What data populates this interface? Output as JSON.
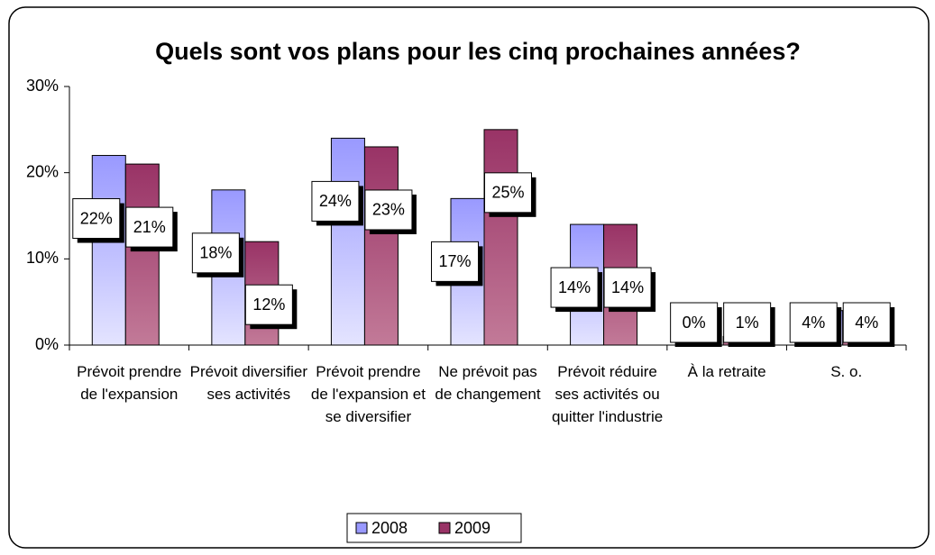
{
  "chart_data": {
    "type": "bar",
    "title": "Quels sont vos plans pour les cinq prochaines années?",
    "categories": [
      "Prévoit prendre de l'expansion",
      "Prévoit diversifier ses activités",
      "Prévoit prendre de l'expansion et se diversifier",
      "Ne prévoit pas de changement",
      "Prévoit réduire ses activités ou quitter l'industrie",
      "À la retraite",
      "S. o."
    ],
    "series": [
      {
        "name": "2008",
        "color": "#9999ff",
        "values": [
          22,
          18,
          24,
          17,
          14,
          0,
          4
        ],
        "value_labels": [
          "22%",
          "18%",
          "24%",
          "17%",
          "14%",
          "0%",
          "4%"
        ]
      },
      {
        "name": "2009",
        "color": "#993366",
        "values": [
          21,
          12,
          23,
          25,
          14,
          1,
          4
        ],
        "value_labels": [
          "21%",
          "12%",
          "23%",
          "25%",
          "14%",
          "1%",
          "4%"
        ]
      }
    ],
    "ylim": [
      0,
      30
    ],
    "yticks": [
      {
        "value": 0,
        "label": "0%"
      },
      {
        "value": 10,
        "label": "10%"
      },
      {
        "value": 20,
        "label": "20%"
      },
      {
        "value": 30,
        "label": "30%"
      }
    ],
    "legend": "bottom"
  }
}
